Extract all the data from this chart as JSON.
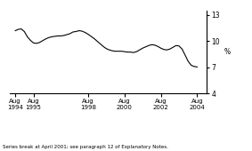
{
  "ylabel": "%",
  "yticks": [
    4,
    7,
    10,
    13
  ],
  "ylim": [
    4,
    13.5
  ],
  "footnote": "Series break at April 2001; see paragraph 12 of Explanatory Notes.",
  "line_color": "#000000",
  "background_color": "#ffffff",
  "xtick_labels": [
    "Aug\n1994",
    "Aug\n1995",
    "Aug\n1998",
    "Aug\n2000",
    "Aug\n2002",
    "Aug\n2004"
  ],
  "xtick_positions": [
    1994.583,
    1995.583,
    1998.583,
    2000.583,
    2002.583,
    2004.583
  ],
  "xlim": [
    1994.3,
    2005.1
  ],
  "data": [
    [
      1994.583,
      11.2
    ],
    [
      1994.75,
      11.35
    ],
    [
      1994.917,
      11.4
    ],
    [
      1995.083,
      11.1
    ],
    [
      1995.25,
      10.5
    ],
    [
      1995.417,
      10.1
    ],
    [
      1995.583,
      9.8
    ],
    [
      1995.75,
      9.75
    ],
    [
      1995.917,
      9.85
    ],
    [
      1996.083,
      10.05
    ],
    [
      1996.25,
      10.25
    ],
    [
      1996.417,
      10.4
    ],
    [
      1996.583,
      10.5
    ],
    [
      1996.75,
      10.55
    ],
    [
      1996.917,
      10.6
    ],
    [
      1997.083,
      10.6
    ],
    [
      1997.25,
      10.65
    ],
    [
      1997.417,
      10.75
    ],
    [
      1997.583,
      10.85
    ],
    [
      1997.75,
      11.05
    ],
    [
      1997.917,
      11.1
    ],
    [
      1998.083,
      11.2
    ],
    [
      1998.25,
      11.15
    ],
    [
      1998.417,
      11.0
    ],
    [
      1998.583,
      10.8
    ],
    [
      1998.75,
      10.55
    ],
    [
      1998.917,
      10.3
    ],
    [
      1999.083,
      10.0
    ],
    [
      1999.25,
      9.7
    ],
    [
      1999.417,
      9.4
    ],
    [
      1999.583,
      9.15
    ],
    [
      1999.75,
      9.0
    ],
    [
      1999.917,
      8.9
    ],
    [
      2000.083,
      8.85
    ],
    [
      2000.25,
      8.85
    ],
    [
      2000.417,
      8.85
    ],
    [
      2000.583,
      8.8
    ],
    [
      2000.75,
      8.75
    ],
    [
      2000.917,
      8.75
    ],
    [
      2001.083,
      8.7
    ],
    [
      2001.25,
      8.8
    ],
    [
      2001.417,
      9.0
    ],
    [
      2001.583,
      9.2
    ],
    [
      2001.75,
      9.35
    ],
    [
      2001.917,
      9.5
    ],
    [
      2002.083,
      9.6
    ],
    [
      2002.25,
      9.55
    ],
    [
      2002.417,
      9.4
    ],
    [
      2002.583,
      9.2
    ],
    [
      2002.75,
      9.05
    ],
    [
      2002.917,
      9.0
    ],
    [
      2003.083,
      9.1
    ],
    [
      2003.25,
      9.3
    ],
    [
      2003.417,
      9.5
    ],
    [
      2003.583,
      9.45
    ],
    [
      2003.75,
      9.1
    ],
    [
      2003.917,
      8.4
    ],
    [
      2004.083,
      7.7
    ],
    [
      2004.25,
      7.25
    ],
    [
      2004.417,
      7.1
    ],
    [
      2004.583,
      7.05
    ]
  ]
}
